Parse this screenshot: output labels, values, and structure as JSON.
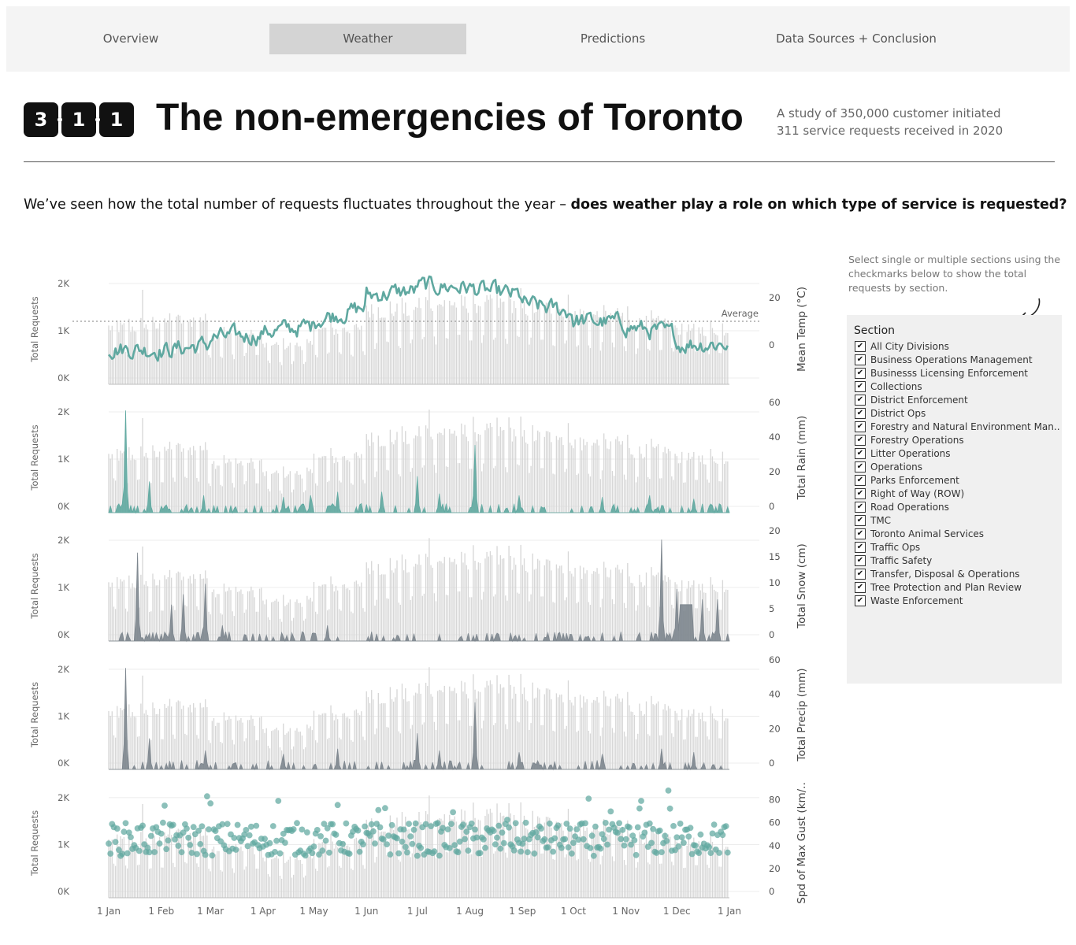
{
  "nav": {
    "tabs": [
      {
        "label": "Overview",
        "active": false
      },
      {
        "label": "Weather",
        "active": true
      },
      {
        "label": "Predictions",
        "active": false
      },
      {
        "label": "Data Sources + Conclusion",
        "active": false
      }
    ]
  },
  "header": {
    "logo": {
      "digits": [
        "3",
        "1",
        "1"
      ]
    },
    "title": "The non-emergencies of Toronto",
    "subtitle_line1": "A study of 350,000 customer initiated",
    "subtitle_line2": "311 service requests received in 2020"
  },
  "question": {
    "plain": "We’ve seen how the total number of requests fluctuates throughout the year – ",
    "bold": "does weather play a role on which type of service is requested?"
  },
  "filter": {
    "hint": "Select single or multiple sections using the checkmarks below to show the total requests by section.",
    "title": "Section",
    "items": [
      {
        "label": "All City Divisions",
        "checked": true
      },
      {
        "label": "Business Operations Management",
        "checked": true
      },
      {
        "label": "Businesss Licensing Enforcement",
        "checked": true
      },
      {
        "label": "Collections",
        "checked": true
      },
      {
        "label": "District Enforcement",
        "checked": true
      },
      {
        "label": "District Ops",
        "checked": true
      },
      {
        "label": "Forestry and Natural Environment Man..",
        "checked": true
      },
      {
        "label": "Forestry Operations",
        "checked": true
      },
      {
        "label": "Litter Operations",
        "checked": true
      },
      {
        "label": "Operations",
        "checked": true
      },
      {
        "label": "Parks Enforcement",
        "checked": true
      },
      {
        "label": "Right of Way (ROW)",
        "checked": true
      },
      {
        "label": "Road Operations",
        "checked": true
      },
      {
        "label": "TMC",
        "checked": true
      },
      {
        "label": "Toronto Animal Services",
        "checked": true
      },
      {
        "label": "Traffic Ops",
        "checked": true
      },
      {
        "label": "Traffic Safety",
        "checked": true
      },
      {
        "label": "Transfer, Disposal & Operations",
        "checked": true
      },
      {
        "label": "Tree Protection and Plan Review",
        "checked": true
      },
      {
        "label": "Waste Enforcement",
        "checked": true
      }
    ]
  },
  "colors": {
    "bars": "#d7d7d7",
    "teal": "#5fa8a0",
    "slate": "#7d868e",
    "grid": "#ececec"
  },
  "chart_data": {
    "type": "bar",
    "x_domain": [
      "2020-01-01",
      "2021-01-01"
    ],
    "x_ticks": [
      "1 Jan",
      "1 Feb",
      "1 Mar",
      "1 Apr",
      "1 May",
      "1 Jun",
      "1 Jul",
      "1 Aug",
      "1 Sep",
      "1 Oct",
      "1 Nov",
      "1 Dec",
      "1 Jan"
    ],
    "x_tick_dates": [
      "2020-01-01",
      "2020-02-01",
      "2020-03-01",
      "2020-04-01",
      "2020-05-01",
      "2020-06-01",
      "2020-07-01",
      "2020-08-01",
      "2020-09-01",
      "2020-10-01",
      "2020-11-01",
      "2020-12-01",
      "2021-01-01"
    ],
    "requests_axis": {
      "label": "Total Requests",
      "ticks": [
        "0K",
        "1K",
        "2K"
      ],
      "ylim": [
        0,
        2200
      ]
    },
    "requests_monthly_level": [
      {
        "month": "Jan",
        "weekday": 1200,
        "weekend": 650
      },
      {
        "month": "Feb",
        "weekday": 1350,
        "weekend": 700
      },
      {
        "month": "Mar",
        "weekday": 1050,
        "weekend": 600
      },
      {
        "month": "Apr",
        "weekday": 820,
        "weekend": 450
      },
      {
        "month": "May",
        "weekday": 1150,
        "weekend": 650
      },
      {
        "month": "Jun",
        "weekday": 1550,
        "weekend": 850
      },
      {
        "month": "Jul",
        "weekday": 1700,
        "weekend": 950
      },
      {
        "month": "Aug",
        "weekday": 1700,
        "weekend": 950
      },
      {
        "month": "Sep",
        "weekday": 1600,
        "weekend": 900
      },
      {
        "month": "Oct",
        "weekday": 1450,
        "weekend": 800
      },
      {
        "month": "Nov",
        "weekday": 1300,
        "weekend": 700
      },
      {
        "month": "Dec",
        "weekday": 1150,
        "weekend": 650
      }
    ],
    "requests_peaks": [
      {
        "date": "2020-01-21",
        "value": 2000
      },
      {
        "date": "2020-07-08",
        "value": 2180
      },
      {
        "date": "2020-08-04",
        "value": 1700
      },
      {
        "date": "2020-11-02",
        "value": 1650
      }
    ],
    "panels": [
      {
        "name": "temperature",
        "type": "line",
        "ylabel": "Mean Temp (°C)",
        "ticks": [
          0,
          20
        ],
        "ylim": [
          -14,
          30
        ],
        "reference_line": {
          "label": "Average",
          "value": 10
        },
        "monthly_mean": [
          -1.5,
          -2.5,
          3,
          5.5,
          10.5,
          21,
          25,
          24,
          17.5,
          10.5,
          8,
          0.5
        ]
      },
      {
        "name": "rain",
        "type": "area",
        "ylabel": "Total Rain (mm)",
        "ticks": [
          0,
          20,
          40,
          60
        ],
        "ylim": [
          0,
          60
        ],
        "events": [
          {
            "date": "2020-01-11",
            "value": 59
          },
          {
            "date": "2020-01-25",
            "value": 18
          },
          {
            "date": "2020-02-26",
            "value": 10
          },
          {
            "date": "2020-04-13",
            "value": 9
          },
          {
            "date": "2020-04-29",
            "value": 10
          },
          {
            "date": "2020-05-15",
            "value": 12
          },
          {
            "date": "2020-06-10",
            "value": 12
          },
          {
            "date": "2020-07-01",
            "value": 21
          },
          {
            "date": "2020-07-14",
            "value": 11
          },
          {
            "date": "2020-08-04",
            "value": 39
          },
          {
            "date": "2020-08-30",
            "value": 10
          },
          {
            "date": "2020-10-18",
            "value": 9
          },
          {
            "date": "2020-11-15",
            "value": 10
          },
          {
            "date": "2020-12-11",
            "value": 8
          }
        ]
      },
      {
        "name": "snow",
        "type": "area",
        "ylabel": "Total Snow (cm)",
        "ticks": [
          0,
          5,
          10,
          15,
          20
        ],
        "ylim": [
          0,
          20
        ],
        "events": [
          {
            "date": "2020-01-18",
            "value": 17
          },
          {
            "date": "2020-02-07",
            "value": 7
          },
          {
            "date": "2020-02-14",
            "value": 9
          },
          {
            "date": "2020-02-27",
            "value": 11
          },
          {
            "date": "2020-03-08",
            "value": 3
          },
          {
            "date": "2020-05-09",
            "value": 3
          },
          {
            "date": "2020-11-22",
            "value": 19.5
          },
          {
            "date": "2020-12-01",
            "value": 10
          },
          {
            "date": "2020-12-16",
            "value": 8
          },
          {
            "date": "2020-12-25",
            "value": 8
          }
        ]
      },
      {
        "name": "precipitation",
        "type": "area",
        "ylabel": "Total Precip (mm)",
        "ticks": [
          0,
          20,
          40,
          60
        ],
        "ylim": [
          0,
          60
        ],
        "events": [
          {
            "date": "2020-01-11",
            "value": 59
          },
          {
            "date": "2020-01-25",
            "value": 18
          },
          {
            "date": "2020-02-27",
            "value": 11
          },
          {
            "date": "2020-04-13",
            "value": 9
          },
          {
            "date": "2020-05-15",
            "value": 12
          },
          {
            "date": "2020-07-01",
            "value": 21
          },
          {
            "date": "2020-07-14",
            "value": 11
          },
          {
            "date": "2020-08-04",
            "value": 39
          },
          {
            "date": "2020-08-30",
            "value": 10
          },
          {
            "date": "2020-10-18",
            "value": 9
          },
          {
            "date": "2020-11-22",
            "value": 12
          },
          {
            "date": "2020-12-11",
            "value": 10
          }
        ]
      },
      {
        "name": "wind-gust",
        "type": "scatter",
        "ylabel": "Spd of Max Gust (km/..",
        "ticks": [
          0,
          20,
          40,
          60,
          80
        ],
        "ylim": [
          0,
          90
        ],
        "typical_range": [
          31,
          60
        ],
        "highlights": [
          {
            "date": "2020-02-28",
            "value": 83
          },
          {
            "date": "2020-04-10",
            "value": 79
          },
          {
            "date": "2020-10-10",
            "value": 81
          },
          {
            "date": "2020-11-10",
            "value": 79
          },
          {
            "date": "2020-11-26",
            "value": 88
          }
        ]
      }
    ]
  }
}
